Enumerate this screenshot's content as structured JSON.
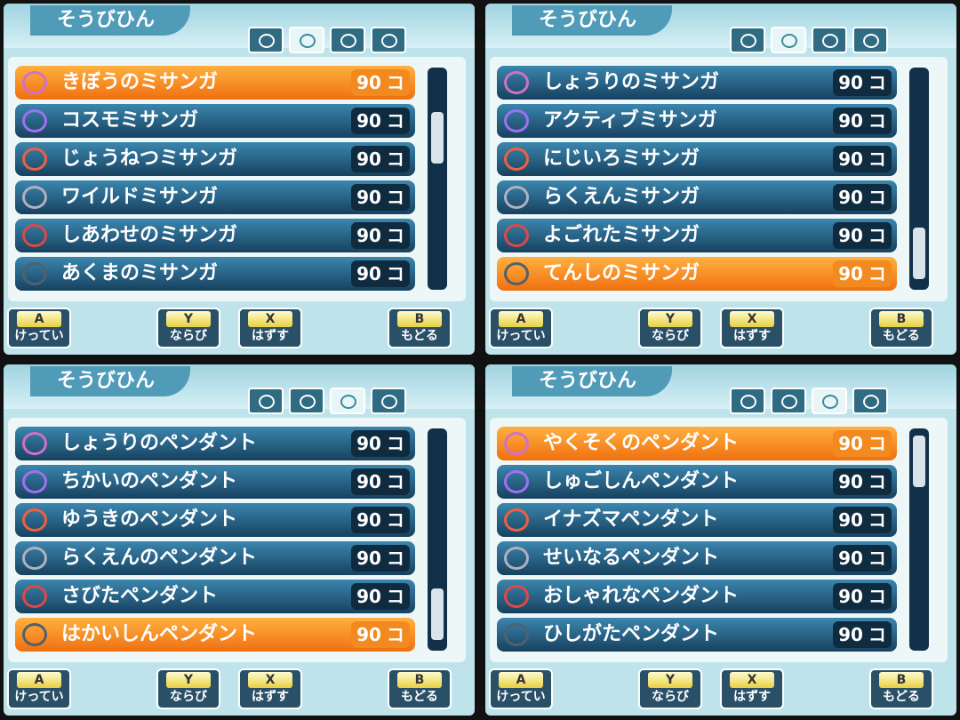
{
  "panels": [
    {
      "title": "そうびひん",
      "active_tab": 1,
      "selected": 0,
      "items": [
        {
          "name": "きぼうのミサンガ",
          "price": "90",
          "unit": "コ"
        },
        {
          "name": "コスモミサンガ",
          "price": "90",
          "unit": "コ"
        },
        {
          "name": "じょうねつミサンガ",
          "price": "90",
          "unit": "コ"
        },
        {
          "name": "ワイルドミサンガ",
          "price": "90",
          "unit": "コ"
        },
        {
          "name": "しあわせのミサンガ",
          "price": "90",
          "unit": "コ"
        },
        {
          "name": "あくまのミサンガ",
          "price": "90",
          "unit": "コ"
        }
      ],
      "buttons": [
        {
          "key": "A",
          "label": "けってい"
        },
        {
          "key": "Y",
          "label": "ならび"
        },
        {
          "key": "X",
          "label": "はずす"
        },
        {
          "key": "B",
          "label": "もどる"
        }
      ]
    },
    {
      "title": "そうびひん",
      "active_tab": 1,
      "selected": 5,
      "items": [
        {
          "name": "しょうりのミサンガ",
          "price": "90",
          "unit": "コ"
        },
        {
          "name": "アクティブミサンガ",
          "price": "90",
          "unit": "コ"
        },
        {
          "name": "にじいろミサンガ",
          "price": "90",
          "unit": "コ"
        },
        {
          "name": "らくえんミサンガ",
          "price": "90",
          "unit": "コ"
        },
        {
          "name": "よごれたミサンガ",
          "price": "90",
          "unit": "コ"
        },
        {
          "name": "てんしのミサンガ",
          "price": "90",
          "unit": "コ"
        }
      ],
      "buttons": [
        {
          "key": "A",
          "label": "けってい"
        },
        {
          "key": "Y",
          "label": "ならび"
        },
        {
          "key": "X",
          "label": "はずす"
        },
        {
          "key": "B",
          "label": "もどる"
        }
      ]
    },
    {
      "title": "そうびひん",
      "active_tab": 2,
      "selected": 5,
      "items": [
        {
          "name": "しょうりのペンダント",
          "price": "90",
          "unit": "コ"
        },
        {
          "name": "ちかいのペンダント",
          "price": "90",
          "unit": "コ"
        },
        {
          "name": "ゆうきのペンダント",
          "price": "90",
          "unit": "コ"
        },
        {
          "name": "らくえんのペンダント",
          "price": "90",
          "unit": "コ"
        },
        {
          "name": "さびたペンダント",
          "price": "90",
          "unit": "コ"
        },
        {
          "name": "はかいしんペンダント",
          "price": "90",
          "unit": "コ"
        }
      ],
      "buttons": [
        {
          "key": "A",
          "label": "けってい"
        },
        {
          "key": "Y",
          "label": "ならび"
        },
        {
          "key": "X",
          "label": "はずす"
        },
        {
          "key": "B",
          "label": "もどる"
        }
      ]
    },
    {
      "title": "そうびひん",
      "active_tab": 2,
      "selected": 0,
      "items": [
        {
          "name": "やくそくのペンダント",
          "price": "90",
          "unit": "コ"
        },
        {
          "name": "しゅごしんペンダント",
          "price": "90",
          "unit": "コ"
        },
        {
          "name": "イナズマペンダント",
          "price": "90",
          "unit": "コ"
        },
        {
          "name": "せいなるペンダント",
          "price": "90",
          "unit": "コ"
        },
        {
          "name": "おしゃれなペンダント",
          "price": "90",
          "unit": "コ"
        },
        {
          "name": "ひしがたペンダント",
          "price": "90",
          "unit": "コ"
        }
      ],
      "buttons": [
        {
          "key": "A",
          "label": "けってい"
        },
        {
          "key": "Y",
          "label": "ならび"
        },
        {
          "key": "X",
          "label": "はずす"
        },
        {
          "key": "B",
          "label": "もどる"
        }
      ]
    }
  ]
}
